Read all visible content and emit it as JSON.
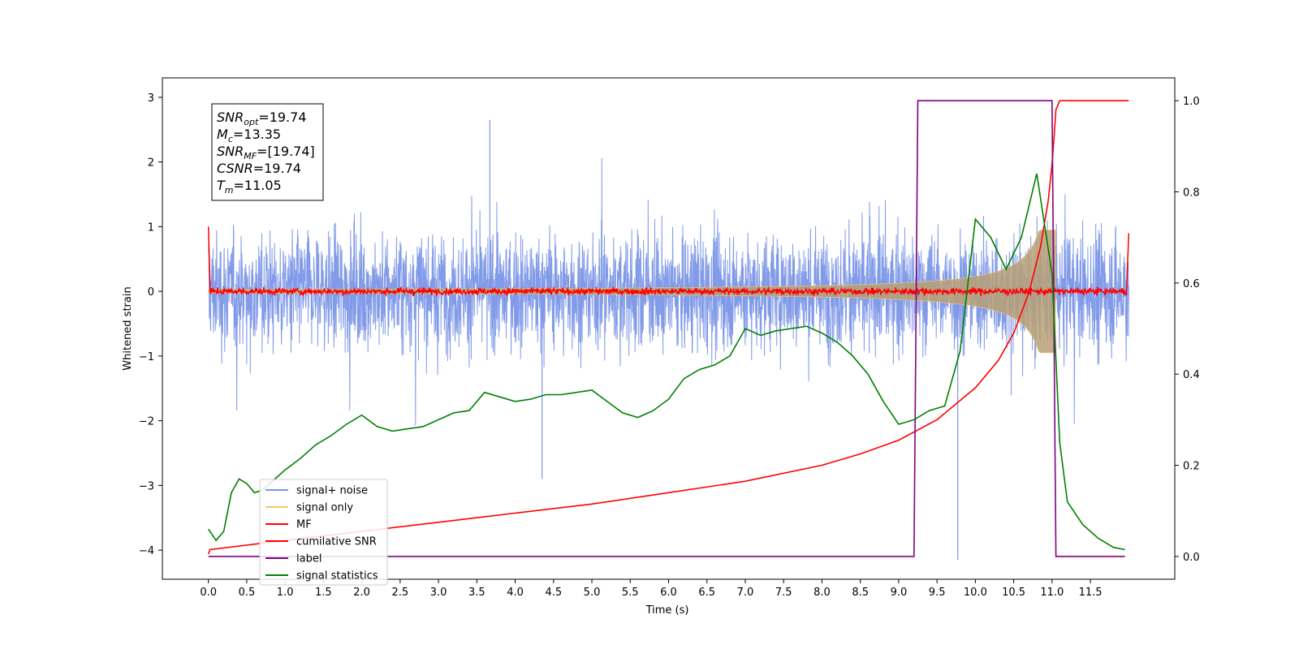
{
  "chart_data": {
    "type": "line",
    "title": "",
    "xlabel": "Time (s)",
    "ylabel_left": "Whitened strain",
    "ylabel_right": "",
    "xlim": [
      -0.6,
      12.6
    ],
    "ylim_left": [
      -4.45,
      3.3
    ],
    "ylim_right": [
      -0.05,
      1.05
    ],
    "x_ticks": [
      "0.0",
      "0.5",
      "1.0",
      "1.5",
      "2.0",
      "2.5",
      "3.0",
      "3.5",
      "4.0",
      "4.5",
      "5.0",
      "5.5",
      "6.0",
      "6.5",
      "7.0",
      "7.5",
      "8.0",
      "8.5",
      "9.0",
      "9.5",
      "10.0",
      "10.5",
      "11.0",
      "11.5"
    ],
    "y_ticks_left": [
      "3",
      "2",
      "1",
      "0",
      "−1",
      "−2",
      "−3",
      "−4"
    ],
    "y_ticks_right": [
      "1.0",
      "0.8",
      "0.6",
      "0.4",
      "0.2",
      "0.0"
    ],
    "grid": false,
    "legend_placement": "lower-left",
    "annotation": {
      "lines": [
        {
          "sym": "SNR",
          "sub": "opt",
          "value": "=19.74"
        },
        {
          "sym": "M",
          "sub": "c",
          "value": "=13.35"
        },
        {
          "sym": "SNR",
          "sub": "MF",
          "value": "=[19.74]"
        },
        {
          "sym": "CSNR",
          "sub": "",
          "value": "=19.74"
        },
        {
          "sym": "T",
          "sub": "m",
          "value": "=11.05"
        }
      ]
    },
    "series": [
      {
        "name": "signal+ noise",
        "axis": "left",
        "color": "#7b96e8",
        "kind": "noise-band",
        "x_range": [
          0,
          12
        ],
        "typical_range": [
          -1.5,
          1.5
        ],
        "max": 2.65,
        "min": -4.15
      },
      {
        "name": "signal only",
        "axis": "left",
        "color": "#f5c96e",
        "kind": "chirp",
        "x_range": [
          0,
          11.05
        ],
        "merger_time": 11.05,
        "peak_amplitude": 0.95
      },
      {
        "name": "MF",
        "axis": "left",
        "color": "#ff0000",
        "kind": "matched-filter",
        "x": [
          0.0,
          0.02,
          0.05,
          11.95,
          11.98,
          12.0
        ],
        "y": [
          1.0,
          0.2,
          0.0,
          0.0,
          0.3,
          0.9
        ]
      },
      {
        "name": "cumilative SNR",
        "axis": "right",
        "color": "#ff0000",
        "x": [
          0.0,
          0.02,
          1.0,
          2.0,
          3.0,
          4.0,
          5.0,
          6.0,
          7.0,
          8.0,
          8.5,
          9.0,
          9.5,
          10.0,
          10.3,
          10.5,
          10.7,
          10.85,
          10.95,
          11.0,
          11.03,
          11.05,
          11.1,
          11.5,
          12.0
        ],
        "y": [
          0.005,
          0.015,
          0.035,
          0.055,
          0.075,
          0.095,
          0.115,
          0.14,
          0.165,
          0.2,
          0.225,
          0.255,
          0.3,
          0.37,
          0.43,
          0.49,
          0.58,
          0.68,
          0.78,
          0.86,
          0.93,
          0.98,
          1.0,
          1.0,
          1.0
        ]
      },
      {
        "name": "label",
        "axis": "right",
        "color": "#800080",
        "x": [
          0.0,
          9.2,
          9.25,
          11.0,
          11.05,
          11.95
        ],
        "y": [
          0.0,
          0.0,
          1.0,
          1.0,
          0.0,
          0.0
        ]
      },
      {
        "name": "signal statistics",
        "axis": "right",
        "color": "#008000",
        "x": [
          0.0,
          0.1,
          0.2,
          0.3,
          0.4,
          0.5,
          0.6,
          0.7,
          0.8,
          0.9,
          1.0,
          1.2,
          1.4,
          1.6,
          1.8,
          2.0,
          2.2,
          2.4,
          2.6,
          2.8,
          3.0,
          3.2,
          3.4,
          3.6,
          3.8,
          4.0,
          4.2,
          4.4,
          4.6,
          4.8,
          5.0,
          5.2,
          5.4,
          5.6,
          5.8,
          6.0,
          6.2,
          6.4,
          6.6,
          6.8,
          7.0,
          7.2,
          7.4,
          7.6,
          7.8,
          8.0,
          8.2,
          8.4,
          8.6,
          8.8,
          9.0,
          9.2,
          9.4,
          9.6,
          9.8,
          10.0,
          10.2,
          10.4,
          10.6,
          10.8,
          11.0,
          11.1,
          11.2,
          11.4,
          11.6,
          11.8,
          11.95
        ],
        "y": [
          0.06,
          0.035,
          0.055,
          0.14,
          0.17,
          0.16,
          0.14,
          0.145,
          0.16,
          0.175,
          0.19,
          0.215,
          0.245,
          0.265,
          0.29,
          0.31,
          0.285,
          0.275,
          0.28,
          0.285,
          0.3,
          0.315,
          0.32,
          0.36,
          0.35,
          0.34,
          0.345,
          0.355,
          0.355,
          0.36,
          0.365,
          0.34,
          0.315,
          0.305,
          0.32,
          0.345,
          0.39,
          0.41,
          0.42,
          0.44,
          0.5,
          0.485,
          0.495,
          0.5,
          0.505,
          0.49,
          0.47,
          0.44,
          0.4,
          0.34,
          0.29,
          0.3,
          0.32,
          0.33,
          0.45,
          0.74,
          0.7,
          0.63,
          0.7,
          0.84,
          0.62,
          0.25,
          0.12,
          0.07,
          0.04,
          0.02,
          0.015
        ]
      }
    ]
  }
}
